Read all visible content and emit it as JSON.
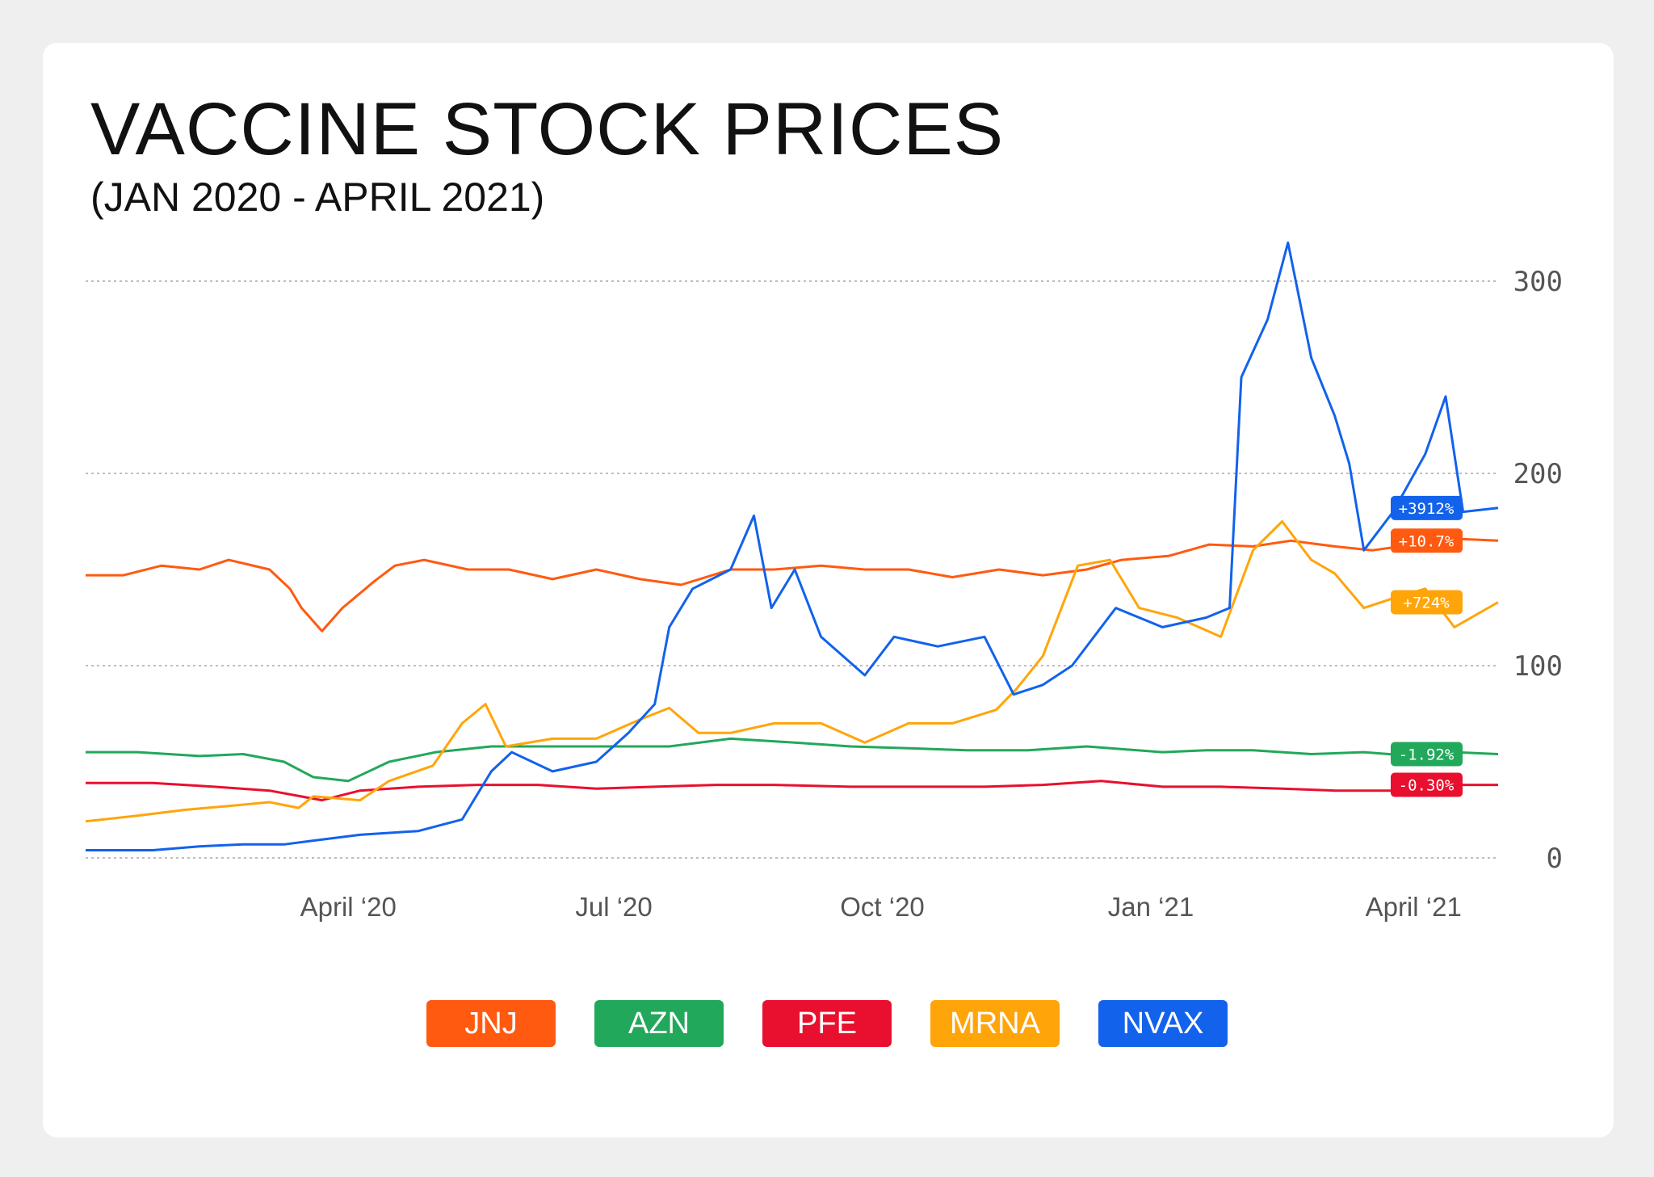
{
  "chart_data": {
    "type": "line",
    "title": "VACCINE STOCK PRICES",
    "subtitle": "(JAN 2020 - APRIL 2021)",
    "xlabel": "",
    "ylabel": "",
    "x_range": [
      "2020-01-02",
      "2021-04-30"
    ],
    "ylim": [
      0,
      320
    ],
    "y_ticks": [
      0,
      100,
      200,
      300
    ],
    "x_ticks": [
      {
        "date": "2020-04-01",
        "label": "April ‘20"
      },
      {
        "date": "2020-07-01",
        "label": "Jul ‘20"
      },
      {
        "date": "2020-10-01",
        "label": "Oct ‘20"
      },
      {
        "date": "2021-01-01",
        "label": "Jan ‘21"
      },
      {
        "date": "2021-04-01",
        "label": "April ‘21"
      }
    ],
    "grid": "horizontal-dotted",
    "legend_placement": "bottom-center",
    "series": [
      {
        "name": "JNJ",
        "color": "#ff5a10",
        "change_label": "+10.7%",
        "points": [
          [
            "2020-01-02",
            147
          ],
          [
            "2020-01-15",
            147
          ],
          [
            "2020-01-28",
            152
          ],
          [
            "2020-02-10",
            150
          ],
          [
            "2020-02-20",
            155
          ],
          [
            "2020-03-05",
            150
          ],
          [
            "2020-03-12",
            140
          ],
          [
            "2020-03-16",
            130
          ],
          [
            "2020-03-23",
            118
          ],
          [
            "2020-03-30",
            130
          ],
          [
            "2020-04-10",
            144
          ],
          [
            "2020-04-17",
            152
          ],
          [
            "2020-04-27",
            155
          ],
          [
            "2020-05-12",
            150
          ],
          [
            "2020-05-26",
            150
          ],
          [
            "2020-06-10",
            145
          ],
          [
            "2020-06-25",
            150
          ],
          [
            "2020-07-10",
            145
          ],
          [
            "2020-07-24",
            142
          ],
          [
            "2020-08-10",
            150
          ],
          [
            "2020-08-25",
            150
          ],
          [
            "2020-09-10",
            152
          ],
          [
            "2020-09-25",
            150
          ],
          [
            "2020-10-10",
            150
          ],
          [
            "2020-10-25",
            146
          ],
          [
            "2020-11-10",
            150
          ],
          [
            "2020-11-25",
            147
          ],
          [
            "2020-12-10",
            150
          ],
          [
            "2020-12-22",
            155
          ],
          [
            "2021-01-07",
            157
          ],
          [
            "2021-01-21",
            163
          ],
          [
            "2021-02-05",
            162
          ],
          [
            "2021-02-18",
            165
          ],
          [
            "2021-03-05",
            162
          ],
          [
            "2021-03-18",
            160
          ],
          [
            "2021-04-01",
            163
          ],
          [
            "2021-04-15",
            166
          ],
          [
            "2021-04-30",
            165
          ]
        ]
      },
      {
        "name": "AZN",
        "color": "#22a85a",
        "change_label": "-1.92%",
        "points": [
          [
            "2020-01-02",
            55
          ],
          [
            "2020-01-20",
            55
          ],
          [
            "2020-02-10",
            53
          ],
          [
            "2020-02-25",
            54
          ],
          [
            "2020-03-10",
            50
          ],
          [
            "2020-03-20",
            42
          ],
          [
            "2020-04-01",
            40
          ],
          [
            "2020-04-15",
            50
          ],
          [
            "2020-05-01",
            55
          ],
          [
            "2020-05-20",
            58
          ],
          [
            "2020-06-10",
            58
          ],
          [
            "2020-07-01",
            58
          ],
          [
            "2020-07-20",
            58
          ],
          [
            "2020-08-10",
            62
          ],
          [
            "2020-09-01",
            60
          ],
          [
            "2020-09-20",
            58
          ],
          [
            "2020-10-10",
            57
          ],
          [
            "2020-10-30",
            56
          ],
          [
            "2020-11-20",
            56
          ],
          [
            "2020-12-10",
            58
          ],
          [
            "2021-01-05",
            55
          ],
          [
            "2021-01-20",
            56
          ],
          [
            "2021-02-05",
            56
          ],
          [
            "2021-02-25",
            54
          ],
          [
            "2021-03-15",
            55
          ],
          [
            "2021-04-01",
            53
          ],
          [
            "2021-04-15",
            55
          ],
          [
            "2021-04-30",
            54
          ]
        ]
      },
      {
        "name": "PFE",
        "color": "#e8102e",
        "change_label": "-0.30%",
        "points": [
          [
            "2020-01-02",
            39
          ],
          [
            "2020-01-25",
            39
          ],
          [
            "2020-02-15",
            37
          ],
          [
            "2020-03-05",
            35
          ],
          [
            "2020-03-23",
            30
          ],
          [
            "2020-04-05",
            35
          ],
          [
            "2020-04-25",
            37
          ],
          [
            "2020-05-15",
            38
          ],
          [
            "2020-06-05",
            38
          ],
          [
            "2020-06-25",
            36
          ],
          [
            "2020-07-15",
            37
          ],
          [
            "2020-08-05",
            38
          ],
          [
            "2020-08-25",
            38
          ],
          [
            "2020-09-20",
            37
          ],
          [
            "2020-10-15",
            37
          ],
          [
            "2020-11-05",
            37
          ],
          [
            "2020-11-25",
            38
          ],
          [
            "2020-12-15",
            40
          ],
          [
            "2021-01-05",
            37
          ],
          [
            "2021-01-25",
            37
          ],
          [
            "2021-02-15",
            36
          ],
          [
            "2021-03-05",
            35
          ],
          [
            "2021-03-25",
            35
          ],
          [
            "2021-04-15",
            38
          ],
          [
            "2021-04-30",
            38
          ]
        ]
      },
      {
        "name": "MRNA",
        "color": "#ffa50a",
        "change_label": "+724%",
        "points": [
          [
            "2020-01-02",
            19
          ],
          [
            "2020-01-20",
            22
          ],
          [
            "2020-02-05",
            25
          ],
          [
            "2020-02-20",
            27
          ],
          [
            "2020-03-05",
            29
          ],
          [
            "2020-03-15",
            26
          ],
          [
            "2020-03-20",
            32
          ],
          [
            "2020-04-05",
            30
          ],
          [
            "2020-04-15",
            40
          ],
          [
            "2020-04-30",
            48
          ],
          [
            "2020-05-10",
            70
          ],
          [
            "2020-05-18",
            80
          ],
          [
            "2020-05-25",
            58
          ],
          [
            "2020-06-10",
            62
          ],
          [
            "2020-06-25",
            62
          ],
          [
            "2020-07-10",
            72
          ],
          [
            "2020-07-20",
            78
          ],
          [
            "2020-07-30",
            65
          ],
          [
            "2020-08-10",
            65
          ],
          [
            "2020-08-25",
            70
          ],
          [
            "2020-09-10",
            70
          ],
          [
            "2020-09-25",
            60
          ],
          [
            "2020-10-10",
            70
          ],
          [
            "2020-10-25",
            70
          ],
          [
            "2020-11-09",
            77
          ],
          [
            "2020-11-16",
            88
          ],
          [
            "2020-11-25",
            105
          ],
          [
            "2020-12-07",
            152
          ],
          [
            "2020-12-18",
            155
          ],
          [
            "2020-12-28",
            130
          ],
          [
            "2021-01-10",
            125
          ],
          [
            "2021-01-25",
            115
          ],
          [
            "2021-02-05",
            160
          ],
          [
            "2021-02-15",
            175
          ],
          [
            "2021-02-25",
            155
          ],
          [
            "2021-03-05",
            148
          ],
          [
            "2021-03-15",
            130
          ],
          [
            "2021-03-25",
            135
          ],
          [
            "2021-04-05",
            140
          ],
          [
            "2021-04-15",
            120
          ],
          [
            "2021-04-30",
            133
          ]
        ]
      },
      {
        "name": "NVAX",
        "color": "#1262ec",
        "change_label": "+3912%",
        "points": [
          [
            "2020-01-02",
            4
          ],
          [
            "2020-01-25",
            4
          ],
          [
            "2020-02-10",
            6
          ],
          [
            "2020-02-25",
            7
          ],
          [
            "2020-03-10",
            7
          ],
          [
            "2020-03-20",
            9
          ],
          [
            "2020-04-05",
            12
          ],
          [
            "2020-04-25",
            14
          ],
          [
            "2020-05-10",
            20
          ],
          [
            "2020-05-20",
            45
          ],
          [
            "2020-05-27",
            55
          ],
          [
            "2020-06-10",
            45
          ],
          [
            "2020-06-25",
            50
          ],
          [
            "2020-07-06",
            65
          ],
          [
            "2020-07-15",
            80
          ],
          [
            "2020-07-20",
            120
          ],
          [
            "2020-07-28",
            140
          ],
          [
            "2020-08-10",
            150
          ],
          [
            "2020-08-18",
            178
          ],
          [
            "2020-08-24",
            130
          ],
          [
            "2020-09-01",
            150
          ],
          [
            "2020-09-10",
            115
          ],
          [
            "2020-09-25",
            95
          ],
          [
            "2020-10-05",
            115
          ],
          [
            "2020-10-20",
            110
          ],
          [
            "2020-11-05",
            115
          ],
          [
            "2020-11-15",
            85
          ],
          [
            "2020-11-25",
            90
          ],
          [
            "2020-12-05",
            100
          ],
          [
            "2020-12-20",
            130
          ],
          [
            "2021-01-05",
            120
          ],
          [
            "2021-01-20",
            125
          ],
          [
            "2021-01-28",
            130
          ],
          [
            "2021-02-01",
            250
          ],
          [
            "2021-02-10",
            280
          ],
          [
            "2021-02-17",
            320
          ],
          [
            "2021-02-25",
            260
          ],
          [
            "2021-03-05",
            230
          ],
          [
            "2021-03-10",
            205
          ],
          [
            "2021-03-15",
            160
          ],
          [
            "2021-03-25",
            180
          ],
          [
            "2021-04-05",
            210
          ],
          [
            "2021-04-12",
            240
          ],
          [
            "2021-04-18",
            180
          ],
          [
            "2021-04-30",
            182
          ]
        ]
      }
    ]
  }
}
